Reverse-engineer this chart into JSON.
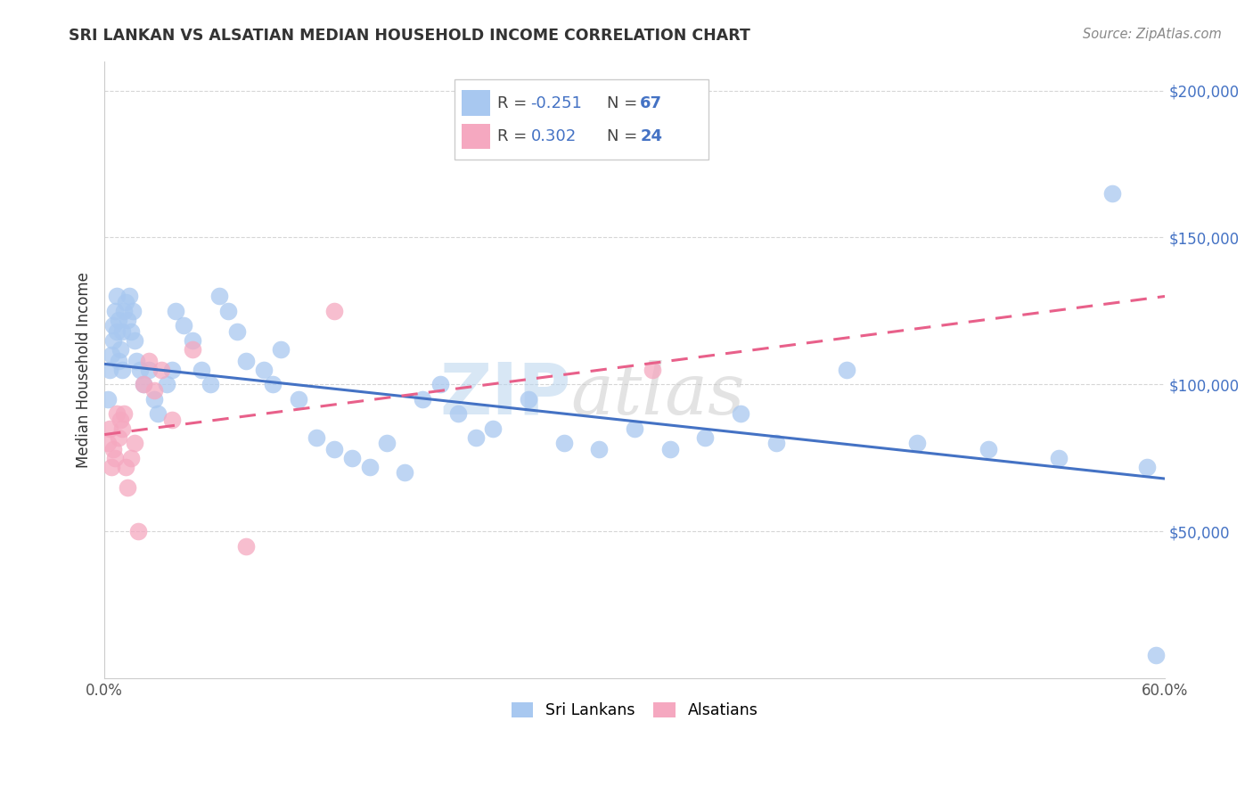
{
  "title": "SRI LANKAN VS ALSATIAN MEDIAN HOUSEHOLD INCOME CORRELATION CHART",
  "source": "Source: ZipAtlas.com",
  "ylabel": "Median Household Income",
  "xlim": [
    0.0,
    0.6
  ],
  "ylim": [
    0,
    210000
  ],
  "xticks": [
    0.0,
    0.1,
    0.2,
    0.3,
    0.4,
    0.5,
    0.6
  ],
  "xticklabels": [
    "0.0%",
    "",
    "",
    "",
    "",
    "",
    "60.0%"
  ],
  "yticks": [
    50000,
    100000,
    150000,
    200000
  ],
  "yticklabels": [
    "$50,000",
    "$100,000",
    "$150,000",
    "$200,000"
  ],
  "sri_lankan_R": -0.251,
  "sri_lankan_N": 67,
  "alsatian_R": 0.302,
  "alsatian_N": 24,
  "sri_lankan_color": "#A8C8F0",
  "alsatian_color": "#F5A8C0",
  "sri_lankan_line_color": "#4472C4",
  "alsatian_line_color": "#E8608A",
  "watermark_text": "ZIPatlas",
  "watermark_color": "#D0E4F5",
  "background_color": "#FFFFFF",
  "sri_lankans_x": [
    0.002,
    0.003,
    0.004,
    0.005,
    0.005,
    0.006,
    0.007,
    0.007,
    0.008,
    0.008,
    0.009,
    0.01,
    0.01,
    0.011,
    0.012,
    0.013,
    0.014,
    0.015,
    0.016,
    0.017,
    0.018,
    0.02,
    0.022,
    0.025,
    0.028,
    0.03,
    0.035,
    0.038,
    0.04,
    0.045,
    0.05,
    0.055,
    0.06,
    0.065,
    0.07,
    0.075,
    0.08,
    0.09,
    0.095,
    0.1,
    0.11,
    0.12,
    0.13,
    0.14,
    0.15,
    0.16,
    0.17,
    0.18,
    0.19,
    0.2,
    0.21,
    0.22,
    0.24,
    0.26,
    0.28,
    0.3,
    0.32,
    0.34,
    0.36,
    0.38,
    0.42,
    0.46,
    0.5,
    0.54,
    0.57,
    0.59,
    0.595
  ],
  "sri_lankans_y": [
    95000,
    105000,
    110000,
    115000,
    120000,
    125000,
    118000,
    130000,
    108000,
    122000,
    112000,
    118000,
    105000,
    125000,
    128000,
    122000,
    130000,
    118000,
    125000,
    115000,
    108000,
    105000,
    100000,
    105000,
    95000,
    90000,
    100000,
    105000,
    125000,
    120000,
    115000,
    105000,
    100000,
    130000,
    125000,
    118000,
    108000,
    105000,
    100000,
    112000,
    95000,
    82000,
    78000,
    75000,
    72000,
    80000,
    70000,
    95000,
    100000,
    90000,
    82000,
    85000,
    95000,
    80000,
    78000,
    85000,
    78000,
    82000,
    90000,
    80000,
    105000,
    80000,
    78000,
    75000,
    165000,
    72000,
    8000
  ],
  "alsatians_x": [
    0.002,
    0.003,
    0.004,
    0.005,
    0.006,
    0.007,
    0.008,
    0.009,
    0.01,
    0.011,
    0.012,
    0.013,
    0.015,
    0.017,
    0.019,
    0.022,
    0.025,
    0.028,
    0.032,
    0.038,
    0.05,
    0.08,
    0.13,
    0.31
  ],
  "alsatians_y": [
    80000,
    85000,
    72000,
    78000,
    75000,
    90000,
    82000,
    88000,
    85000,
    90000,
    72000,
    65000,
    75000,
    80000,
    50000,
    100000,
    108000,
    98000,
    105000,
    88000,
    112000,
    45000,
    125000,
    105000
  ],
  "sri_lankan_trend_x0": 0.0,
  "sri_lankan_trend_x1": 0.6,
  "sri_lankan_trend_y0": 107000,
  "sri_lankan_trend_y1": 68000,
  "alsatian_trend_x0": 0.0,
  "alsatian_trend_x1": 0.6,
  "alsatian_trend_y0": 83000,
  "alsatian_trend_y1": 130000
}
